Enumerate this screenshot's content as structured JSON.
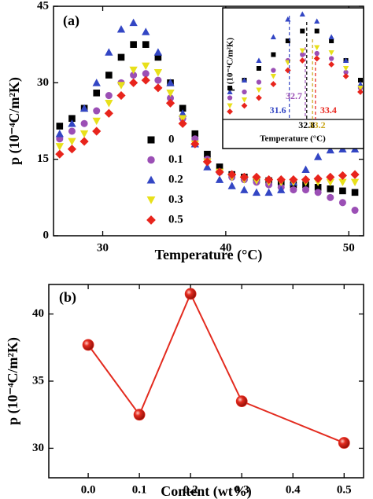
{
  "chart_data": [
    {
      "type": "scatter",
      "panel_label": "(a)",
      "x_label": "Temperature (°C)",
      "y_label": "p (10⁻⁴C/m²K)",
      "xlim": [
        26,
        51.2
      ],
      "ylim": [
        0,
        45
      ],
      "xticks": [
        30,
        40,
        50
      ],
      "yticks": [
        0,
        15,
        30,
        45
      ],
      "x": [
        26.5,
        27.5,
        28.5,
        29.5,
        30.5,
        31.5,
        32.5,
        33.5,
        34.5,
        35.5,
        36.5,
        37.5,
        38.5,
        39.5,
        40.5,
        41.5,
        42.5,
        43.5,
        44.5,
        45.5,
        46.5,
        47.5,
        48.5,
        49.5,
        50.5
      ],
      "legend": "center-left",
      "series": [
        {
          "name": "0",
          "color": "#000000",
          "marker": "square",
          "values": [
            21.5,
            23,
            25,
            28,
            31.5,
            35,
            37.5,
            37.5,
            35,
            30,
            25,
            20,
            16,
            13.5,
            12,
            11.5,
            11,
            10.8,
            10.5,
            10,
            10,
            9.5,
            9.2,
            8.8,
            8.5
          ]
        },
        {
          "name": "0.1",
          "color": "#9b4fb5",
          "marker": "circle",
          "values": [
            19,
            20.5,
            22,
            24.5,
            27.5,
            30,
            31.5,
            31.8,
            30.5,
            27,
            23,
            19,
            15,
            12.5,
            11.5,
            11,
            10.5,
            10,
            9.5,
            9,
            9,
            8.5,
            7.5,
            6.5,
            5
          ]
        },
        {
          "name": "0.2",
          "color": "#3346c4",
          "marker": "triangle",
          "values": [
            20,
            22,
            25,
            30,
            36,
            40.5,
            41.8,
            40,
            36,
            30,
            24,
            18,
            13.5,
            11,
            9.8,
            9,
            8.5,
            8.5,
            9,
            10.5,
            13,
            15.5,
            16.8,
            17,
            17
          ]
        },
        {
          "name": "0.3",
          "color": "#e8e01a",
          "marker": "triangle-down",
          "values": [
            17.5,
            18.5,
            20,
            22.5,
            26,
            29.5,
            32.5,
            33.3,
            32,
            28,
            23,
            18,
            14.5,
            12.5,
            11.5,
            11,
            10.8,
            10.5,
            10.5,
            10.5,
            10.5,
            10.5,
            10.5,
            10.5,
            10.5
          ]
        },
        {
          "name": "0.5",
          "color": "#e8241c",
          "marker": "diamond",
          "values": [
            16,
            17,
            18.5,
            20.5,
            24,
            27.5,
            30,
            30.5,
            29,
            26,
            22,
            18,
            14.5,
            12.5,
            12,
            11.5,
            11.5,
            11,
            11,
            11,
            11,
            11.2,
            11.5,
            11.8,
            12
          ]
        }
      ]
    },
    {
      "type": "inset",
      "x_label": "Temperature (°C)",
      "y_label": "p (10⁻⁴C/m²K)",
      "xlim": [
        28.2,
        36.5
      ],
      "ylim": [
        15,
        43
      ],
      "vlines": [
        {
          "x": 31.6,
          "color": "#3346c4"
        },
        {
          "x": 32.7,
          "color": "#9b4fb5"
        },
        {
          "x": 32.8,
          "color": "#000000"
        },
        {
          "x": 33.2,
          "color": "#c9a417"
        },
        {
          "x": 33.4,
          "color": "#e8241c"
        }
      ]
    },
    {
      "type": "line",
      "panel_label": "(b)",
      "x_label": "Content (wt%)",
      "y_label": "p (10⁻⁴C/m²K)",
      "xlim": [
        -0.077,
        0.538
      ],
      "ylim": [
        27.8,
        42.2
      ],
      "xticks": [
        {
          "value": 0,
          "label": "0.0"
        },
        0.1,
        0.2,
        0.3,
        0.4,
        0.5
      ],
      "yticks": [
        30,
        35,
        40
      ],
      "x": [
        0,
        0.1,
        0.2,
        0.3,
        0.5
      ],
      "values": [
        37.7,
        32.5,
        41.5,
        33.5,
        30.4
      ],
      "color": "#e32b1f"
    }
  ]
}
